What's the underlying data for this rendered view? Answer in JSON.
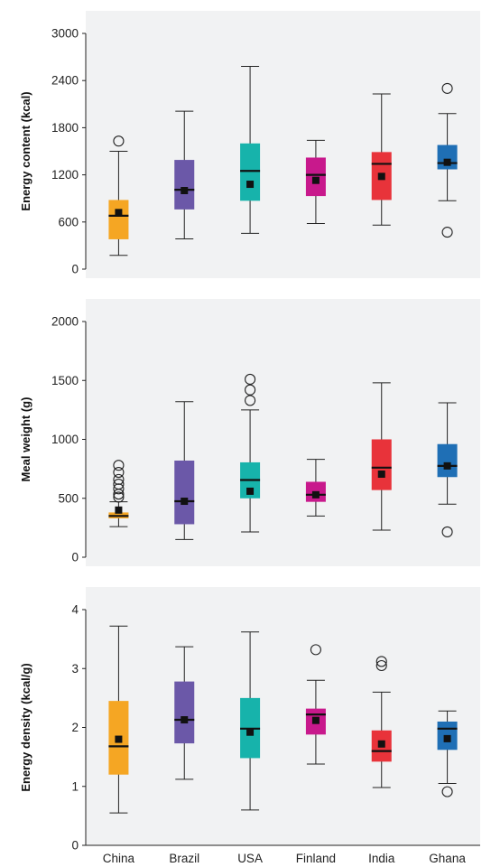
{
  "chart_data": [
    {
      "type": "box",
      "ylabel": "Energy content (kcal)",
      "ylim": [
        0,
        3000
      ],
      "yticks": [
        0,
        600,
        1200,
        1800,
        2400,
        3000
      ],
      "categories": [
        "China",
        "Brazil",
        "USA",
        "Finland",
        "India",
        "Ghana"
      ],
      "colors": [
        "#f5a623",
        "#6b58a8",
        "#17b3ab",
        "#c8198c",
        "#e8333a",
        "#1f6fb5"
      ],
      "boxes": [
        {
          "whisker_low": 175,
          "q1": 380,
          "median": 680,
          "q3": 880,
          "whisker_high": 1500,
          "mean": 720,
          "outliers": [
            1630
          ]
        },
        {
          "whisker_low": 385,
          "q1": 760,
          "median": 1010,
          "q3": 1390,
          "whisker_high": 2010,
          "mean": 1000,
          "outliers": []
        },
        {
          "whisker_low": 455,
          "q1": 870,
          "median": 1250,
          "q3": 1600,
          "whisker_high": 2580,
          "mean": 1080,
          "outliers": []
        },
        {
          "whisker_low": 580,
          "q1": 930,
          "median": 1200,
          "q3": 1420,
          "whisker_high": 1640,
          "mean": 1130,
          "outliers": []
        },
        {
          "whisker_low": 560,
          "q1": 880,
          "median": 1340,
          "q3": 1490,
          "whisker_high": 2230,
          "mean": 1180,
          "outliers": []
        },
        {
          "whisker_low": 870,
          "q1": 1270,
          "median": 1350,
          "q3": 1580,
          "whisker_high": 1980,
          "mean": 1360,
          "outliers": [
            2300,
            470
          ]
        }
      ]
    },
    {
      "type": "box",
      "ylabel": "Meal weight (g)",
      "ylim": [
        0,
        2000
      ],
      "yticks": [
        0,
        500,
        1000,
        1500,
        2000
      ],
      "categories": [
        "China",
        "Brazil",
        "USA",
        "Finland",
        "India",
        "Ghana"
      ],
      "colors": [
        "#f5a623",
        "#6b58a8",
        "#17b3ab",
        "#c8198c",
        "#e8333a",
        "#1f6fb5"
      ],
      "boxes": [
        {
          "whisker_low": 260,
          "q1": 330,
          "median": 350,
          "q3": 380,
          "whisker_high": 470,
          "mean": 400,
          "outliers": [
            510,
            535,
            580,
            620,
            660,
            720,
            780
          ]
        },
        {
          "whisker_low": 150,
          "q1": 280,
          "median": 475,
          "q3": 820,
          "whisker_high": 1320,
          "mean": 475,
          "outliers": []
        },
        {
          "whisker_low": 215,
          "q1": 500,
          "median": 655,
          "q3": 805,
          "whisker_high": 1250,
          "mean": 560,
          "outliers": [
            1330,
            1420,
            1510
          ]
        },
        {
          "whisker_low": 350,
          "q1": 470,
          "median": 530,
          "q3": 640,
          "whisker_high": 830,
          "mean": 530,
          "outliers": []
        },
        {
          "whisker_low": 230,
          "q1": 570,
          "median": 760,
          "q3": 1000,
          "whisker_high": 1480,
          "mean": 705,
          "outliers": []
        },
        {
          "whisker_low": 450,
          "q1": 680,
          "median": 775,
          "q3": 960,
          "whisker_high": 1310,
          "mean": 775,
          "outliers": [
            215
          ]
        }
      ]
    },
    {
      "type": "box",
      "ylabel": "Energy density (kcal/g)",
      "ylim": [
        0,
        4
      ],
      "yticks": [
        0,
        1,
        2,
        3,
        4
      ],
      "categories": [
        "China",
        "Brazil",
        "USA",
        "Finland",
        "India",
        "Ghana"
      ],
      "colors": [
        "#f5a623",
        "#6b58a8",
        "#17b3ab",
        "#c8198c",
        "#e8333a",
        "#1f6fb5"
      ],
      "boxes": [
        {
          "whisker_low": 0.55,
          "q1": 1.2,
          "median": 1.68,
          "q3": 2.45,
          "whisker_high": 3.72,
          "mean": 1.8,
          "outliers": []
        },
        {
          "whisker_low": 1.12,
          "q1": 1.73,
          "median": 2.13,
          "q3": 2.78,
          "whisker_high": 3.37,
          "mean": 2.13,
          "outliers": []
        },
        {
          "whisker_low": 0.6,
          "q1": 1.48,
          "median": 1.98,
          "q3": 2.5,
          "whisker_high": 3.62,
          "mean": 1.92,
          "outliers": []
        },
        {
          "whisker_low": 1.38,
          "q1": 1.88,
          "median": 2.22,
          "q3": 2.32,
          "whisker_high": 2.8,
          "mean": 2.12,
          "outliers": [
            3.32
          ]
        },
        {
          "whisker_low": 0.98,
          "q1": 1.42,
          "median": 1.6,
          "q3": 1.95,
          "whisker_high": 2.6,
          "mean": 1.72,
          "outliers": [
            3.05,
            3.12
          ]
        },
        {
          "whisker_low": 1.05,
          "q1": 1.62,
          "median": 1.98,
          "q3": 2.1,
          "whisker_high": 2.28,
          "mean": 1.81,
          "outliers": [
            0.91
          ]
        }
      ]
    }
  ]
}
